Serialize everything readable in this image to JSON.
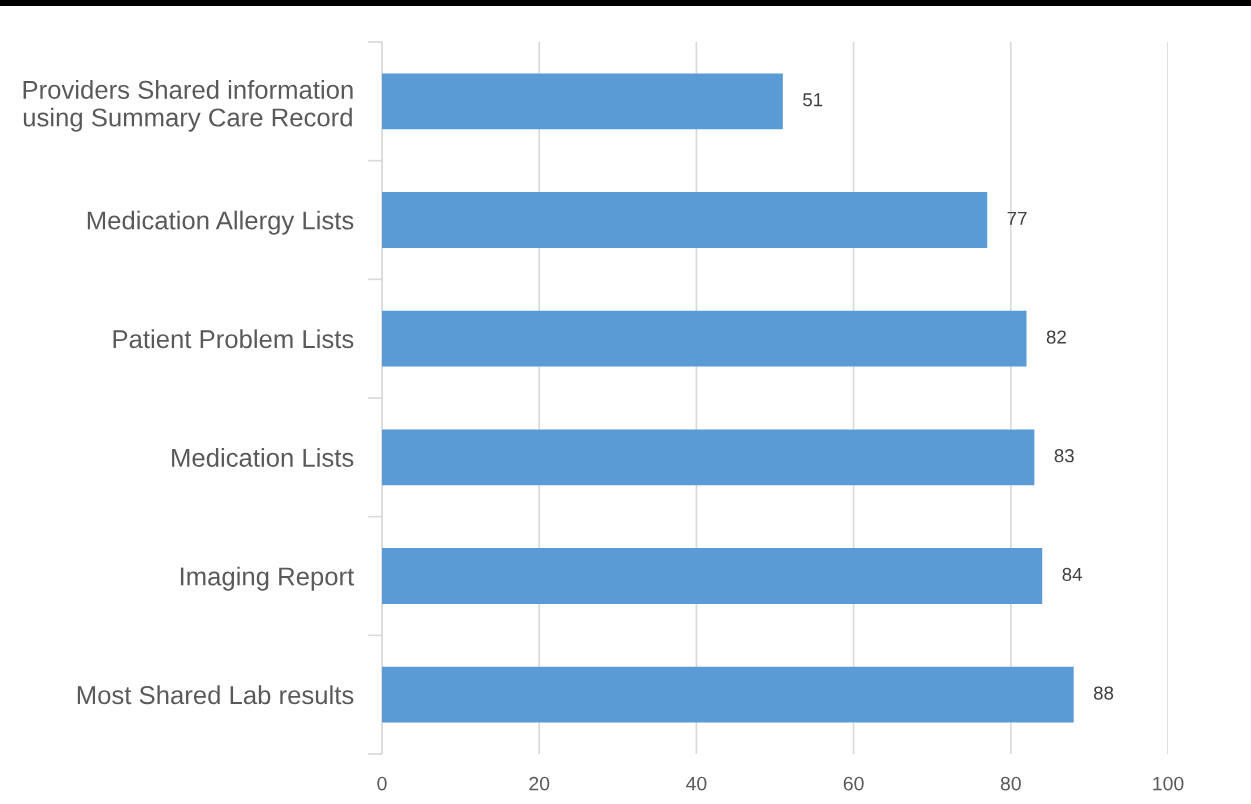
{
  "chart_data": {
    "type": "bar",
    "orientation": "horizontal",
    "categories": [
      "Providers Shared information\nusing Summary Care Record",
      "Medication Allergy Lists",
      "Patient Problem Lists",
      "Medication Lists",
      "Imaging Report",
      "Most Shared Lab results"
    ],
    "values": [
      51,
      77,
      82,
      83,
      84,
      88
    ],
    "color": "#5b9bd5",
    "xlim": [
      0,
      100
    ],
    "xticks": [
      0,
      20,
      40,
      60,
      80,
      100
    ],
    "grid": "x",
    "data_labels": true
  }
}
